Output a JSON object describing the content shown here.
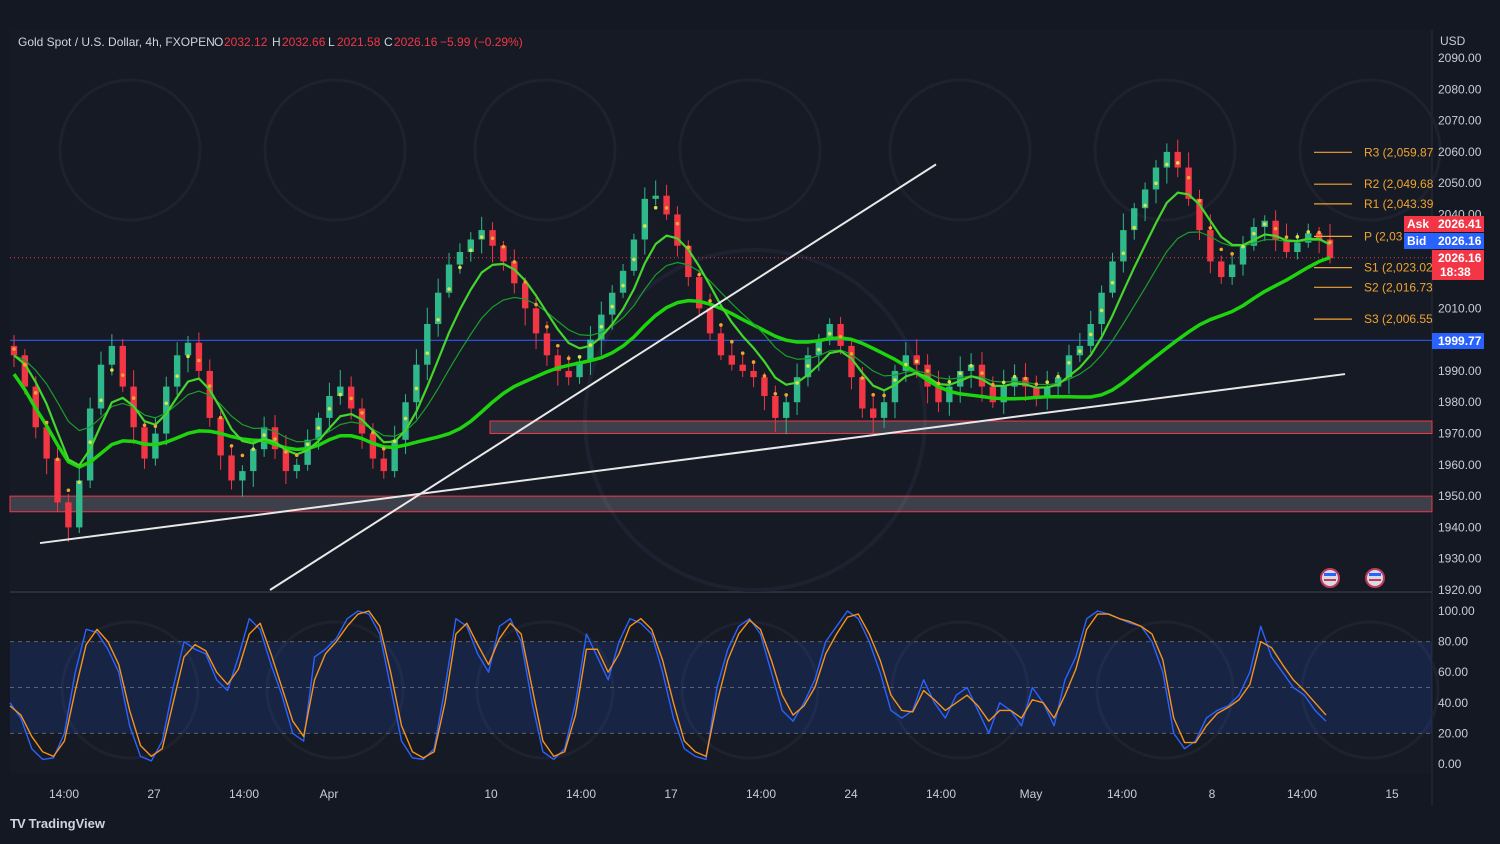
{
  "legend": {
    "symbol": "Gold Spot / U.S. Dollar, 4h, FXOPEN",
    "open_label": "O",
    "open": "2032.12",
    "high_label": "H",
    "high": "2032.66",
    "low_label": "L",
    "low": "2021.58",
    "close_label": "C",
    "close": "2026.16",
    "change": "−5.99 (−0.29%)"
  },
  "currency": "USD",
  "brand": {
    "logo_text": "TV",
    "name": "TradingView"
  },
  "colors": {
    "background": "#141823",
    "bull": "#2fb88a",
    "bear": "#f23645",
    "ma_fast": "#44d62c",
    "ma_slow": "#1ed40e",
    "trendline": "#e8e8e8",
    "pivot": "#f0a530",
    "ask": "#f23645",
    "bid": "#2962ff",
    "stoch_k": "#2962ff",
    "stoch_d": "#f7931a",
    "horizontal_line": "#2b4fd6"
  },
  "chart_data": [
    {
      "type": "candlestick",
      "title": "Gold Spot / U.S. Dollar, 4h, FXOPEN",
      "x_ticks": [
        "14:00",
        "27",
        "14:00",
        "Apr",
        "10",
        "14:00",
        "17",
        "14:00",
        "24",
        "14:00",
        "May",
        "14:00",
        "8",
        "14:00",
        "15"
      ],
      "y_ticks": [
        "2090.00",
        "2080.00",
        "2070.00",
        "2060.00",
        "2050.00",
        "2040.00",
        "2010.00",
        "1990.00",
        "1980.00",
        "1970.00",
        "1960.00",
        "1950.00",
        "1940.00",
        "1930.00",
        "1920.00"
      ],
      "ylim": [
        1920,
        2090
      ],
      "close_path": [
        1995,
        1985,
        1972,
        1962,
        1948,
        1940,
        1955,
        1978,
        1992,
        1998,
        1985,
        1972,
        1962,
        1970,
        1985,
        1995,
        1999,
        1990,
        1975,
        1963,
        1955,
        1958,
        1965,
        1972,
        1965,
        1958,
        1960,
        1968,
        1975,
        1982,
        1985,
        1978,
        1970,
        1962,
        1958,
        1968,
        1980,
        1992,
        2005,
        2015,
        2024,
        2028,
        2032,
        2035,
        2030,
        2025,
        2018,
        2010,
        2002,
        1995,
        1990,
        1988,
        1993,
        2000,
        2008,
        2015,
        2022,
        2032,
        2045,
        2046,
        2040,
        2030,
        2020,
        2010,
        2002,
        1995,
        1992,
        1990,
        1988,
        1982,
        1975,
        1980,
        1988,
        1995,
        2000,
        2005,
        1998,
        1988,
        1978,
        1975,
        1980,
        1990,
        1995,
        1992,
        1985,
        1980,
        1985,
        1990,
        1992,
        1985,
        1980,
        1985,
        1988,
        1985,
        1982,
        1985,
        1988,
        1995,
        1998,
        2005,
        2015,
        2025,
        2035,
        2042,
        2048,
        2055,
        2060,
        2055,
        2045,
        2035,
        2025,
        2020,
        2024,
        2030,
        2036,
        2038,
        2032,
        2028,
        2031,
        2034,
        2032,
        2026
      ],
      "horizontal_line": 1999.77,
      "support_zones": [
        {
          "low": 1970,
          "high": 1974
        },
        {
          "low": 1945,
          "high": 1950
        }
      ],
      "trendlines": [
        {
          "from": [
            "Mar 22",
            1935
          ],
          "to": [
            "May 13",
            1990
          ]
        },
        {
          "from": [
            "Mar 29",
            1920
          ],
          "to": [
            "Apr 23",
            2055
          ]
        }
      ],
      "pivots": [
        {
          "name": "R3",
          "label": "R3 (2,059.87",
          "value": 2059.87
        },
        {
          "name": "R2",
          "label": "R2 (2,049.68",
          "value": 2049.68
        },
        {
          "name": "R1",
          "label": "R1 (2,043.39",
          "value": 2043.39
        },
        {
          "name": "P",
          "label": "P (2,03",
          "value": 2033
        },
        {
          "name": "S1",
          "label": "S1 (2,023.02",
          "value": 2023.02
        },
        {
          "name": "S2",
          "label": "S2 (2,016.73",
          "value": 2016.73
        },
        {
          "name": "S3",
          "label": "S3 (2,006.55",
          "value": 2006.55
        }
      ],
      "price_tags": [
        {
          "label": "Ask",
          "value": "2026.41"
        },
        {
          "label": "Bid",
          "value": "2026.16"
        },
        {
          "label": "",
          "value": "2026.16",
          "countdown": "18:38"
        },
        {
          "label": "",
          "value": "1999.77"
        }
      ]
    },
    {
      "type": "line",
      "title": "",
      "y_ticks": [
        "100.00",
        "80.00",
        "60.00",
        "40.00",
        "20.00",
        "0.00"
      ],
      "ylim": [
        0,
        100
      ],
      "bands": [
        20,
        50,
        80
      ],
      "series": [
        {
          "color": "#2962ff",
          "values": [
            40,
            30,
            10,
            3,
            4,
            20,
            60,
            88,
            86,
            75,
            60,
            25,
            5,
            2,
            15,
            50,
            80,
            75,
            72,
            55,
            48,
            70,
            95,
            88,
            65,
            45,
            20,
            15,
            70,
            75,
            82,
            95,
            100,
            98,
            85,
            50,
            15,
            4,
            3,
            10,
            50,
            95,
            90,
            72,
            60,
            90,
            95,
            80,
            40,
            8,
            3,
            10,
            40,
            85,
            70,
            55,
            80,
            95,
            92,
            85,
            60,
            30,
            10,
            5,
            3,
            50,
            75,
            90,
            95,
            85,
            60,
            35,
            28,
            40,
            55,
            80,
            90,
            100,
            95,
            80,
            60,
            35,
            30,
            35,
            55,
            40,
            30,
            45,
            50,
            35,
            20,
            40,
            35,
            25,
            50,
            40,
            25,
            55,
            70,
            95,
            100,
            98,
            95,
            92,
            90,
            80,
            60,
            20,
            10,
            15,
            30,
            35,
            38,
            45,
            60,
            90,
            70,
            60,
            50,
            45,
            35,
            28
          ]
        },
        {
          "color": "#f7931a",
          "values": [
            38,
            32,
            18,
            8,
            5,
            15,
            48,
            78,
            88,
            80,
            65,
            35,
            12,
            5,
            10,
            40,
            70,
            78,
            74,
            60,
            52,
            62,
            85,
            92,
            72,
            50,
            28,
            18,
            55,
            72,
            80,
            90,
            98,
            100,
            90,
            60,
            25,
            8,
            4,
            8,
            40,
            85,
            92,
            78,
            65,
            82,
            92,
            85,
            50,
            15,
            5,
            8,
            32,
            75,
            75,
            60,
            72,
            90,
            95,
            88,
            68,
            40,
            15,
            8,
            5,
            40,
            68,
            85,
            94,
            88,
            68,
            45,
            32,
            38,
            50,
            72,
            85,
            96,
            98,
            85,
            68,
            45,
            35,
            34,
            48,
            42,
            35,
            40,
            45,
            38,
            28,
            35,
            35,
            30,
            42,
            40,
            30,
            45,
            62,
            88,
            98,
            98,
            95,
            93,
            90,
            85,
            68,
            30,
            14,
            14,
            25,
            33,
            37,
            42,
            52,
            80,
            76,
            65,
            55,
            48,
            40,
            32
          ]
        }
      ]
    }
  ]
}
